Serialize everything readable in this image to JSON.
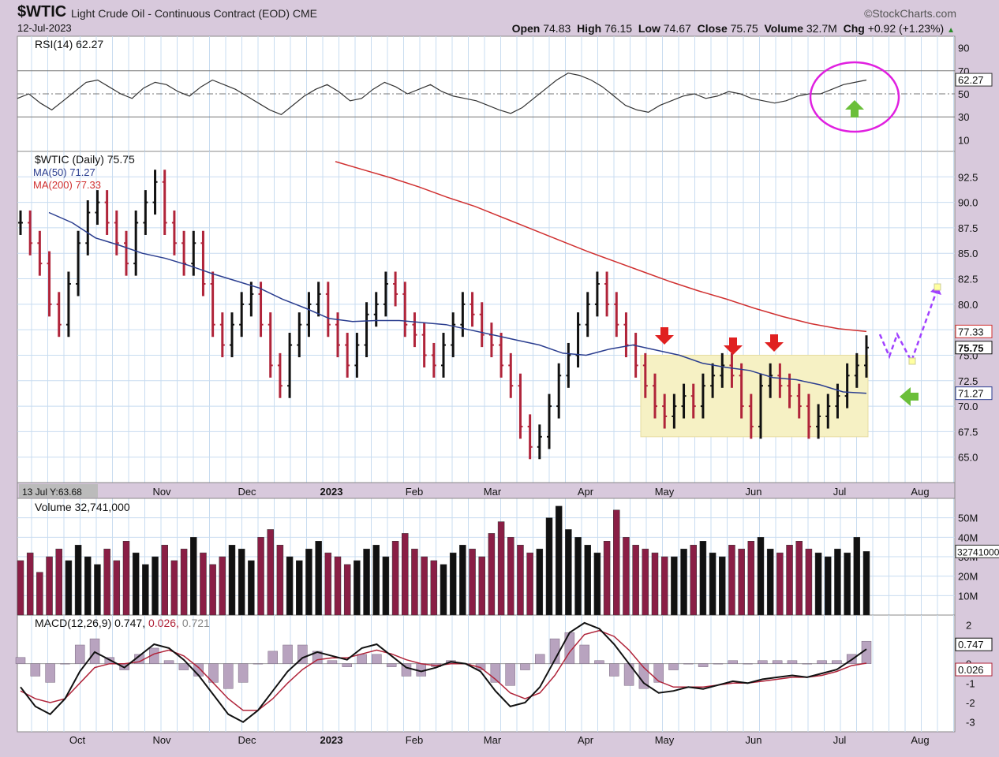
{
  "header": {
    "symbol": "$WTIC",
    "subtitle": "Light Crude Oil - Continuous Contract (EOD)  CME",
    "date": "12-Jul-2023",
    "brand": "©StockCharts.com",
    "open_label": "Open",
    "open": "74.83",
    "high_label": "High",
    "high": "76.15",
    "low_label": "Low",
    "low": "74.67",
    "close_label": "Close",
    "close": "75.75",
    "volume_label": "Volume",
    "volume": "32.7M",
    "chg_label": "Chg",
    "chg": "+0.92 (+1.23%)"
  },
  "colors": {
    "panel_bg": "#ffffff",
    "grid": "#c8dcf0",
    "up": "#111111",
    "down": "#b0243a",
    "ma50": "#2a3d8f",
    "ma200": "#d03030",
    "volume_down": "#8a1e45",
    "consolidation": "#f6f1c4",
    "annotation_magenta": "#e020e0",
    "annotation_green": "#6bbf3a",
    "annotation_red": "#e02020",
    "annotation_purple": "#a040ff"
  },
  "chart_data": [
    {
      "type": "line",
      "panel": "rsi",
      "title": "RSI(14) 62.27",
      "y_ticks": [
        "90",
        "70",
        "50",
        "30",
        "10"
      ],
      "ylim": [
        0,
        100
      ],
      "levels": [
        70,
        50,
        30
      ],
      "last_value_label": "62.27",
      "values": [
        46,
        50,
        42,
        36,
        44,
        52,
        60,
        62,
        56,
        50,
        46,
        55,
        60,
        58,
        52,
        48,
        56,
        62,
        58,
        54,
        48,
        42,
        36,
        32,
        40,
        48,
        54,
        58,
        52,
        44,
        46,
        54,
        60,
        56,
        50,
        54,
        58,
        52,
        48,
        46,
        44,
        40,
        36,
        33,
        38,
        46,
        54,
        62,
        68,
        66,
        62,
        56,
        48,
        40,
        36,
        34,
        40,
        44,
        48,
        50,
        46,
        48,
        52,
        50,
        46,
        44,
        42,
        44,
        48,
        50,
        50,
        54,
        58,
        60,
        62
      ]
    },
    {
      "type": "line",
      "panel": "price",
      "title": "$WTIC (Daily) 75.75",
      "legend": [
        {
          "name": "MA(50) 71.27"
        },
        {
          "name": "MA(200) 77.33"
        }
      ],
      "y_ticks": [
        "92.5",
        "90.0",
        "87.5",
        "85.0",
        "82.5",
        "80.0",
        "77.5",
        "75.0",
        "72.5",
        "70.0",
        "67.5",
        "65.0"
      ],
      "ylim": [
        62.5,
        95
      ],
      "right_labels": [
        "77.33",
        "75.75",
        "71.27"
      ],
      "cursor_label": "13 Jul Y:63.68",
      "x_labels": [
        "Nov",
        "Dec",
        "2023",
        "Feb",
        "Mar",
        "Apr",
        "May",
        "Jun",
        "Jul",
        "Aug"
      ],
      "series": [
        {
          "name": "$WTIC",
          "values": [
            88,
            86,
            84,
            80,
            78,
            82,
            86,
            89,
            90,
            88,
            86,
            84,
            88,
            90,
            92,
            88,
            86,
            84,
            86,
            82,
            78,
            76,
            78,
            80,
            81,
            78,
            74,
            72,
            76,
            78,
            80,
            81,
            78,
            76,
            74,
            76,
            79,
            80,
            82,
            81,
            78,
            77,
            75,
            74,
            76,
            78,
            80,
            79,
            77,
            76,
            74,
            72,
            68,
            66,
            67,
            70,
            73,
            75,
            78,
            80,
            82,
            80,
            78,
            76,
            74,
            72,
            70,
            69,
            70,
            71,
            70,
            72,
            73,
            74,
            73,
            70,
            68,
            72,
            73,
            72,
            71,
            70,
            68,
            69,
            70,
            71,
            73,
            74,
            75.75
          ]
        },
        {
          "name": "MA(50) 71.27",
          "values": [
            89,
            88,
            86.5,
            85.8,
            85,
            84.5,
            83.8,
            83,
            82.3,
            81.6,
            80.5,
            79.6,
            78.6,
            78.3,
            78.4,
            78.4,
            78.2,
            78,
            77.5,
            77,
            76.5,
            76,
            75.2,
            75,
            75.6,
            76,
            75.5,
            75,
            74.2,
            73.8,
            73.5,
            72.8,
            72.6,
            72.1,
            71.4,
            71.27
          ]
        },
        {
          "name": "MA(200) 77.33",
          "values": [
            94,
            93.2,
            92.4,
            91.5,
            90.5,
            89.6,
            88.5,
            87.4,
            86.3,
            85.2,
            84.2,
            83.2,
            82.2,
            81.3,
            80.5,
            79.6,
            78.8,
            78.1,
            77.6,
            77.33
          ]
        }
      ]
    },
    {
      "type": "bar",
      "panel": "volume",
      "title": "Volume 32,741,000",
      "y_ticks": [
        "50M",
        "40M",
        "30M",
        "20M",
        "10M"
      ],
      "ylim": [
        0,
        60000000
      ],
      "last_value_label": "32741000",
      "values": [
        28,
        32,
        22,
        30,
        34,
        28,
        36,
        30,
        26,
        34,
        28,
        38,
        32,
        26,
        30,
        36,
        28,
        34,
        40,
        32,
        26,
        30,
        36,
        34,
        28,
        40,
        44,
        36,
        30,
        28,
        34,
        38,
        32,
        30,
        26,
        28,
        34,
        36,
        30,
        38,
        42,
        34,
        30,
        28,
        26,
        32,
        36,
        34,
        30,
        42,
        48,
        40,
        36,
        32,
        34,
        50,
        56,
        44,
        40,
        36,
        32,
        38,
        54,
        40,
        36,
        34,
        32,
        30,
        30,
        34,
        36,
        38,
        32,
        30,
        36,
        34,
        38,
        40,
        34,
        32,
        36,
        38,
        34,
        32,
        30,
        34,
        32,
        40,
        32.7
      ]
    },
    {
      "type": "line",
      "panel": "macd",
      "title": "MACD(12,26,9)",
      "macd_value": "0.747",
      "signal_value": "0.026",
      "hist_value": "0.721",
      "y_ticks": [
        "2",
        "1",
        "0",
        "-1",
        "-2",
        "-3"
      ],
      "ylim": [
        -3.5,
        2.5
      ],
      "right_labels": [
        "0.747",
        "0.026"
      ],
      "x_labels": [
        "Oct",
        "Nov",
        "Dec",
        "2023",
        "Feb",
        "Mar",
        "Apr",
        "May",
        "Jun",
        "Jul",
        "Aug"
      ],
      "series": [
        {
          "name": "MACD",
          "values": [
            -1.2,
            -2.2,
            -2.6,
            -1.8,
            -0.4,
            0.6,
            0.2,
            -0.2,
            0.4,
            1.0,
            0.8,
            0.2,
            -0.6,
            -1.6,
            -2.6,
            -3.0,
            -2.4,
            -1.4,
            -0.4,
            0.3,
            0.6,
            0.4,
            0.2,
            0.8,
            1.0,
            0.4,
            -0.2,
            -0.4,
            -0.2,
            0.1,
            0.0,
            -0.4,
            -1.4,
            -2.2,
            -2.0,
            -1.2,
            0.2,
            1.6,
            2.1,
            1.8,
            1.0,
            0.0,
            -1.0,
            -1.5,
            -1.4,
            -1.2,
            -1.3,
            -1.1,
            -0.9,
            -1.0,
            -0.8,
            -0.7,
            -0.6,
            -0.7,
            -0.5,
            -0.3,
            0.2,
            0.747
          ]
        },
        {
          "name": "Signal",
          "values": [
            -1.4,
            -1.8,
            -2.0,
            -1.8,
            -1.0,
            -0.2,
            0.0,
            0.0,
            0.1,
            0.5,
            0.7,
            0.4,
            -0.2,
            -1.0,
            -1.8,
            -2.4,
            -2.4,
            -1.8,
            -1.0,
            -0.3,
            0.2,
            0.3,
            0.3,
            0.5,
            0.7,
            0.5,
            0.2,
            0.0,
            -0.1,
            0.0,
            0.0,
            -0.2,
            -0.8,
            -1.5,
            -1.8,
            -1.5,
            -0.6,
            0.6,
            1.5,
            1.7,
            1.4,
            0.7,
            -0.2,
            -0.9,
            -1.2,
            -1.2,
            -1.2,
            -1.1,
            -1.0,
            -1.0,
            -0.9,
            -0.8,
            -0.7,
            -0.7,
            -0.6,
            -0.4,
            -0.1,
            0.026
          ]
        }
      ]
    }
  ]
}
